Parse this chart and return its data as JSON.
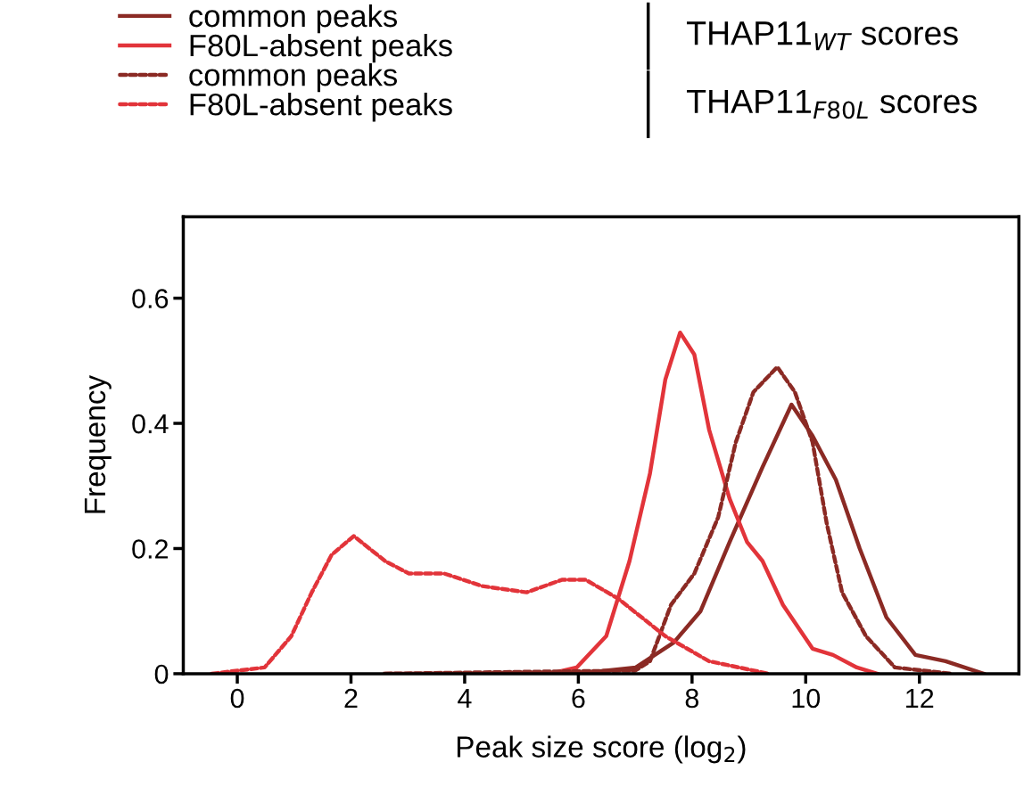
{
  "chart_data": {
    "type": "line",
    "xlabel": "Peak size score (log$_{2}$)",
    "ylabel": "Frequency",
    "xlim": [
      -0.95,
      13.75
    ],
    "ylim": [
      0,
      0.73
    ],
    "xticks": [
      0,
      2,
      4,
      6,
      8,
      10,
      12
    ],
    "yticks": [
      0,
      0.2,
      0.4,
      0.6
    ],
    "grid": false,
    "legend": "top",
    "marker": "none",
    "annotations": [
      "THAP11$_{WT}$ scores",
      "THAP11$_{F80L}$ scores"
    ],
    "series": [
      {
        "name": "common peaks",
        "color": "#8b2a24",
        "line_style": "solid",
        "x": [
          2.6,
          5.97,
          7.01,
          7.68,
          8.15,
          8.66,
          9.24,
          9.75,
          10.12,
          10.53,
          10.95,
          11.42,
          11.93,
          12.46,
          13.13
        ],
        "values": [
          0,
          0,
          0.01,
          0.05,
          0.1,
          0.21,
          0.33,
          0.43,
          0.38,
          0.31,
          0.2,
          0.09,
          0.03,
          0.02,
          0
        ]
      },
      {
        "name": "F80L-absent peaks",
        "color": "#e2343a",
        "line_style": "solid",
        "x": [
          5.5,
          5.97,
          6.49,
          6.9,
          7.26,
          7.53,
          7.79,
          8.04,
          8.3,
          8.66,
          8.97,
          9.24,
          9.6,
          10.12,
          10.48,
          10.9,
          11.26
        ],
        "values": [
          0,
          0.01,
          0.06,
          0.18,
          0.32,
          0.47,
          0.545,
          0.51,
          0.39,
          0.28,
          0.21,
          0.18,
          0.11,
          0.04,
          0.03,
          0.01,
          0
        ]
      },
      {
        "name": "common peaks",
        "color": "#8b2a24",
        "line_style": "dashed",
        "x": [
          2.6,
          5.0,
          7.0,
          7.26,
          7.63,
          8.04,
          8.46,
          8.77,
          9.08,
          9.5,
          9.81,
          10.12,
          10.37,
          10.64,
          11.06,
          11.57,
          12.55
        ],
        "values": [
          0,
          0.003,
          0.005,
          0.02,
          0.11,
          0.16,
          0.25,
          0.37,
          0.45,
          0.49,
          0.45,
          0.37,
          0.24,
          0.13,
          0.06,
          0.01,
          0
        ]
      },
      {
        "name": "F80L-absent peaks",
        "color": "#e2343a",
        "line_style": "dashed",
        "x": [
          -0.45,
          0.48,
          0.95,
          1.31,
          1.66,
          2.05,
          2.6,
          3.02,
          3.64,
          4.31,
          5.09,
          5.71,
          6.13,
          6.7,
          7.53,
          8.3,
          9.35
        ],
        "values": [
          0,
          0.01,
          0.06,
          0.13,
          0.19,
          0.22,
          0.18,
          0.16,
          0.16,
          0.14,
          0.13,
          0.15,
          0.15,
          0.12,
          0.06,
          0.02,
          0
        ]
      }
    ]
  }
}
